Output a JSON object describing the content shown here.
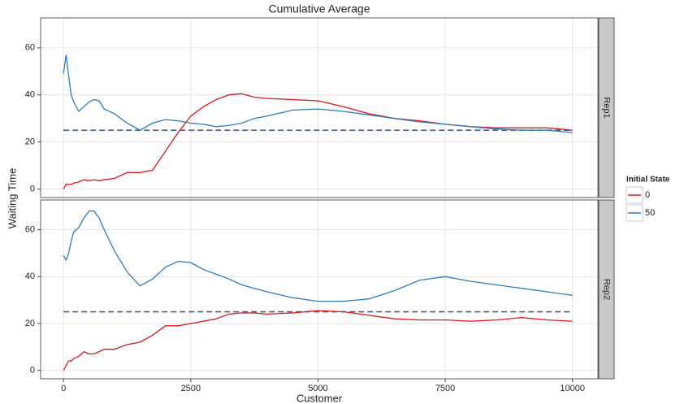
{
  "chart_data": {
    "type": "line",
    "title": "Cumulative Average",
    "x_label": "Customer",
    "y_label": "Waiting Time",
    "legend_title": "Initial State",
    "x": [
      0,
      50,
      100,
      150,
      200,
      300,
      400,
      500,
      600,
      700,
      800,
      1000,
      1250,
      1500,
      1750,
      2000,
      2250,
      2500,
      2750,
      3000,
      3250,
      3500,
      3750,
      4000,
      4500,
      5000,
      5500,
      6000,
      6500,
      7000,
      7500,
      8000,
      8500,
      9000,
      9500,
      10000
    ],
    "xlim": [
      -450,
      10500
    ],
    "xticks": [
      0,
      2500,
      5000,
      7500,
      10000
    ],
    "ylim": [
      -3.6,
      72.7
    ],
    "yticks": [
      0,
      20,
      40,
      60
    ],
    "grid": true,
    "facets": [
      {
        "label": "Rep1",
        "hline": 25,
        "hline_color": "#4a5a8f",
        "series": [
          {
            "name": "0",
            "color": "#d7191c",
            "values": [
              0,
              2,
              2,
              2,
              2.5,
              3,
              4,
              3.5,
              4,
              3.5,
              4,
              4.5,
              7,
              7,
              8,
              16,
              24,
              31,
              35,
              38,
              40,
              40.5,
              39,
              38.5,
              38,
              37.5,
              35,
              32,
              30,
              29,
              27.5,
              26.5,
              26,
              26,
              26,
              25
            ]
          },
          {
            "name": "50",
            "color": "#2b7bba",
            "values": [
              49,
              57,
              48,
              40,
              37,
              33,
              35,
              37,
              38,
              37.5,
              34,
              32,
              28,
              25,
              28,
              29.5,
              29,
              28,
              27.5,
              26.5,
              27,
              28,
              30,
              31,
              33.5,
              34,
              33,
              31.5,
              30,
              28.5,
              27.5,
              26.5,
              25.5,
              25,
              25,
              24
            ]
          }
        ]
      },
      {
        "label": "Rep2",
        "hline": 25,
        "hline_color": "#4a5a8f",
        "series": [
          {
            "name": "0",
            "color": "#d7191c",
            "values": [
              0,
              2,
              4,
              4,
              5,
              6,
              8,
              7,
              7,
              8,
              9,
              9,
              11,
              12,
              15,
              19,
              19,
              20,
              21,
              22,
              24,
              24.5,
              24.5,
              24,
              24.5,
              25.5,
              25,
              23.5,
              22,
              21.5,
              21.5,
              21,
              21.5,
              22.5,
              21.5,
              21
            ]
          },
          {
            "name": "50",
            "color": "#2b7bba",
            "values": [
              49,
              47,
              50,
              55,
              59,
              61,
              65,
              68,
              68,
              65,
              60,
              51,
              42,
              36,
              39,
              44,
              46.5,
              46,
              43,
              41,
              39,
              36.5,
              35,
              33.5,
              31,
              29.5,
              29.5,
              30.5,
              34,
              38.5,
              40,
              38,
              36.5,
              35,
              33.5,
              32
            ]
          }
        ]
      }
    ]
  }
}
